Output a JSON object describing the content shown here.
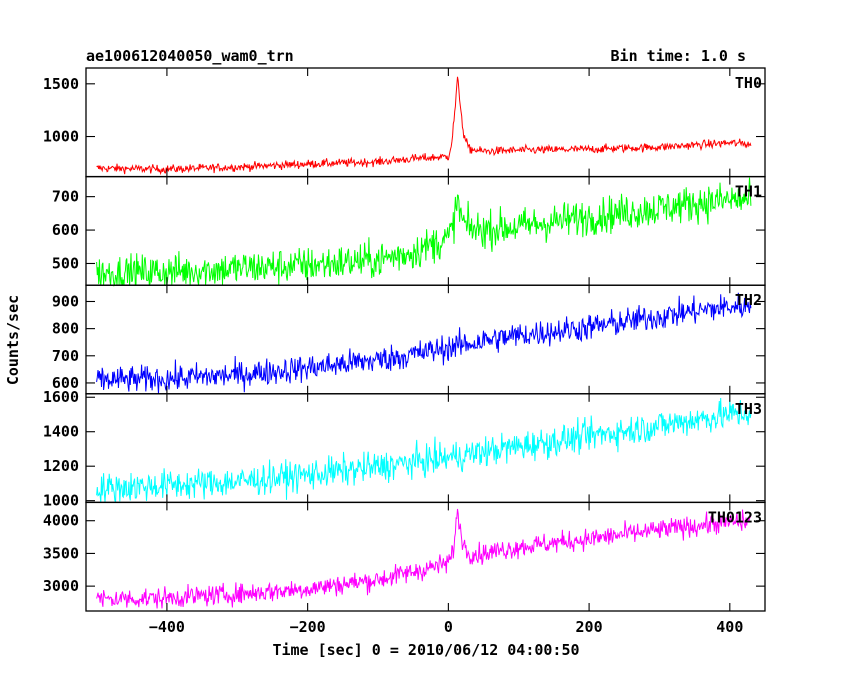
{
  "chart_data": {
    "type": "line",
    "title": "ae100612040050_wam0_trn",
    "subtitle": "Bin time: 1.0 s",
    "xlabel": "Time [sec] 0 = 2010/06/12 04:00:50",
    "ylabel": "Counts/sec",
    "xlim": [
      -515,
      450
    ],
    "xticks": [
      -400,
      -200,
      0,
      200,
      400
    ],
    "xtick_labels": [
      "−400",
      "−200",
      "0",
      "200",
      "400"
    ],
    "grid": false,
    "series": [
      {
        "name": "TH0",
        "color": "#ff0000",
        "ylim": [
          620,
          1650
        ],
        "yticks": [
          1000,
          1500
        ],
        "ytick_labels": [
          "1000",
          "1500"
        ],
        "x": [
          -500,
          -400,
          -300,
          -200,
          -100,
          -50,
          0,
          5,
          10,
          13,
          18,
          22,
          30,
          50,
          100,
          200,
          300,
          350,
          400,
          430
        ],
        "y": [
          700,
          690,
          710,
          740,
          760,
          790,
          810,
          950,
          1300,
          1550,
          1250,
          1000,
          880,
          860,
          870,
          880,
          900,
          920,
          940,
          930
        ],
        "noise": 40
      },
      {
        "name": "TH1",
        "color": "#00ff00",
        "ylim": [
          435,
          760
        ],
        "yticks": [
          500,
          600,
          700
        ],
        "ytick_labels": [
          "500",
          "600",
          "700"
        ],
        "x": [
          -500,
          -400,
          -300,
          -200,
          -100,
          -50,
          0,
          5,
          10,
          13,
          18,
          25,
          40,
          100,
          200,
          300,
          350,
          400,
          430
        ],
        "y": [
          470,
          475,
          485,
          495,
          510,
          535,
          575,
          600,
          650,
          690,
          640,
          610,
          600,
          610,
          640,
          665,
          680,
          690,
          690
        ],
        "noise": 55
      },
      {
        "name": "TH2",
        "color": "#0000ff",
        "ylim": [
          560,
          960
        ],
        "yticks": [
          600,
          700,
          800,
          900
        ],
        "ytick_labels": [
          "600",
          "700",
          "800",
          "900"
        ],
        "x": [
          -500,
          -400,
          -300,
          -200,
          -100,
          -50,
          0,
          50,
          100,
          200,
          300,
          350,
          400,
          430
        ],
        "y": [
          610,
          615,
          630,
          655,
          685,
          705,
          730,
          755,
          775,
          805,
          845,
          865,
          880,
          885
        ],
        "noise": 50
      },
      {
        "name": "TH3",
        "color": "#00ffff",
        "ylim": [
          990,
          1620
        ],
        "yticks": [
          1000,
          1200,
          1400,
          1600
        ],
        "ytick_labels": [
          "1000",
          "1200",
          "1400",
          "1600"
        ],
        "x": [
          -500,
          -400,
          -300,
          -200,
          -100,
          0,
          100,
          200,
          300,
          350,
          400,
          430
        ],
        "y": [
          1070,
          1090,
          1110,
          1150,
          1195,
          1250,
          1315,
          1375,
          1435,
          1470,
          1500,
          1510
        ],
        "noise": 90
      },
      {
        "name": "TH0123",
        "color": "#ff00ff",
        "ylim": [
          2620,
          4280
        ],
        "yticks": [
          3000,
          3500,
          4000
        ],
        "ytick_labels": [
          "3000",
          "3500",
          "4000"
        ],
        "x": [
          -500,
          -400,
          -300,
          -200,
          -100,
          -50,
          0,
          5,
          10,
          13,
          18,
          25,
          40,
          100,
          200,
          300,
          350,
          400,
          430
        ],
        "y": [
          2800,
          2820,
          2880,
          2960,
          3100,
          3220,
          3350,
          3480,
          3800,
          4150,
          3800,
          3550,
          3480,
          3600,
          3720,
          3860,
          3920,
          3980,
          3990
        ],
        "noise": 160
      }
    ]
  }
}
